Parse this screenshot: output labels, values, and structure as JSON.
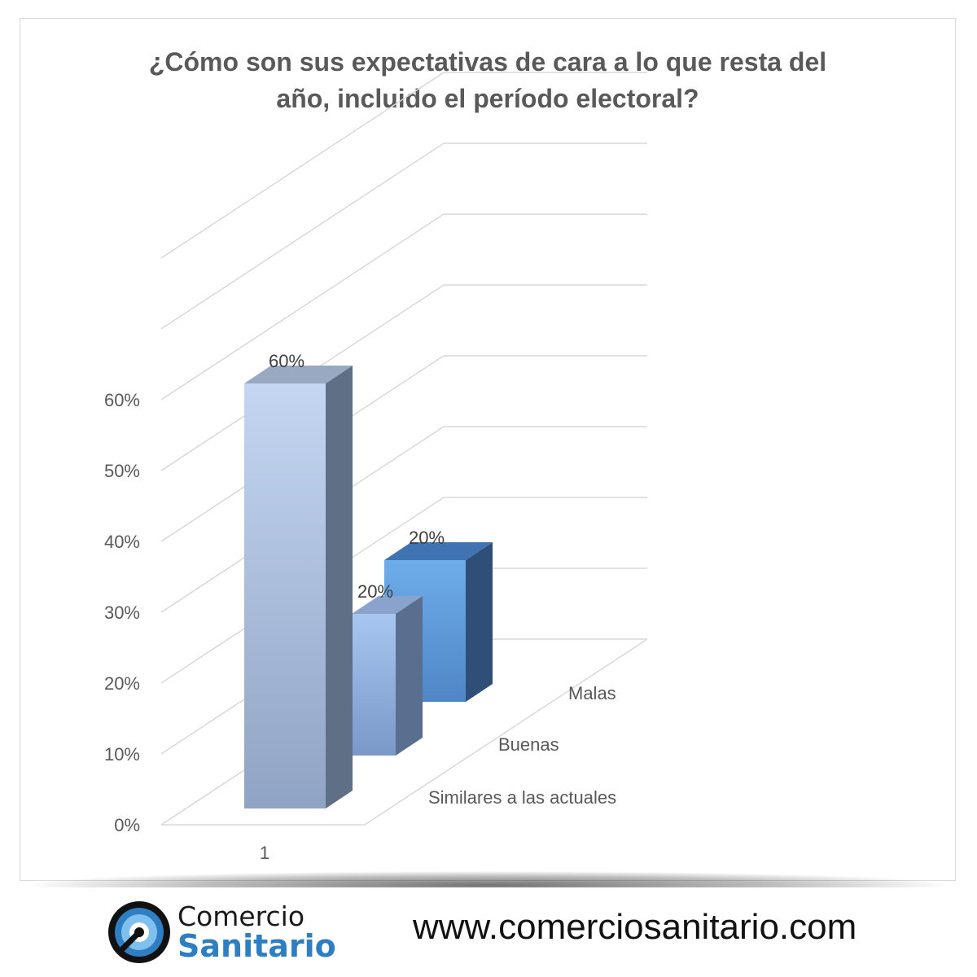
{
  "chart_data": {
    "type": "bar",
    "title": "¿Cómo son sus expectativas de cara a lo que resta del\naño, incluido el período electoral?",
    "categories": [
      "1"
    ],
    "series": [
      {
        "name": "Similares a las actuales",
        "values": [
          0.6
        ],
        "label": "60%",
        "color": "#b9cde8"
      },
      {
        "name": "Buenas",
        "values": [
          0.2
        ],
        "label": "20%",
        "color": "#97b9e6"
      },
      {
        "name": "Malas",
        "values": [
          0.2
        ],
        "label": "20%",
        "color": "#62a3e3"
      }
    ],
    "y_ticks": [
      "0%",
      "10%",
      "20%",
      "30%",
      "40%",
      "50%",
      "60%"
    ],
    "ylim": [
      0,
      0.6
    ],
    "grid": true,
    "style": "3d-column"
  },
  "footer": {
    "logo_line1": "Comercio",
    "logo_line2": "Sanitario",
    "url": "www.comerciosanitario.com"
  }
}
